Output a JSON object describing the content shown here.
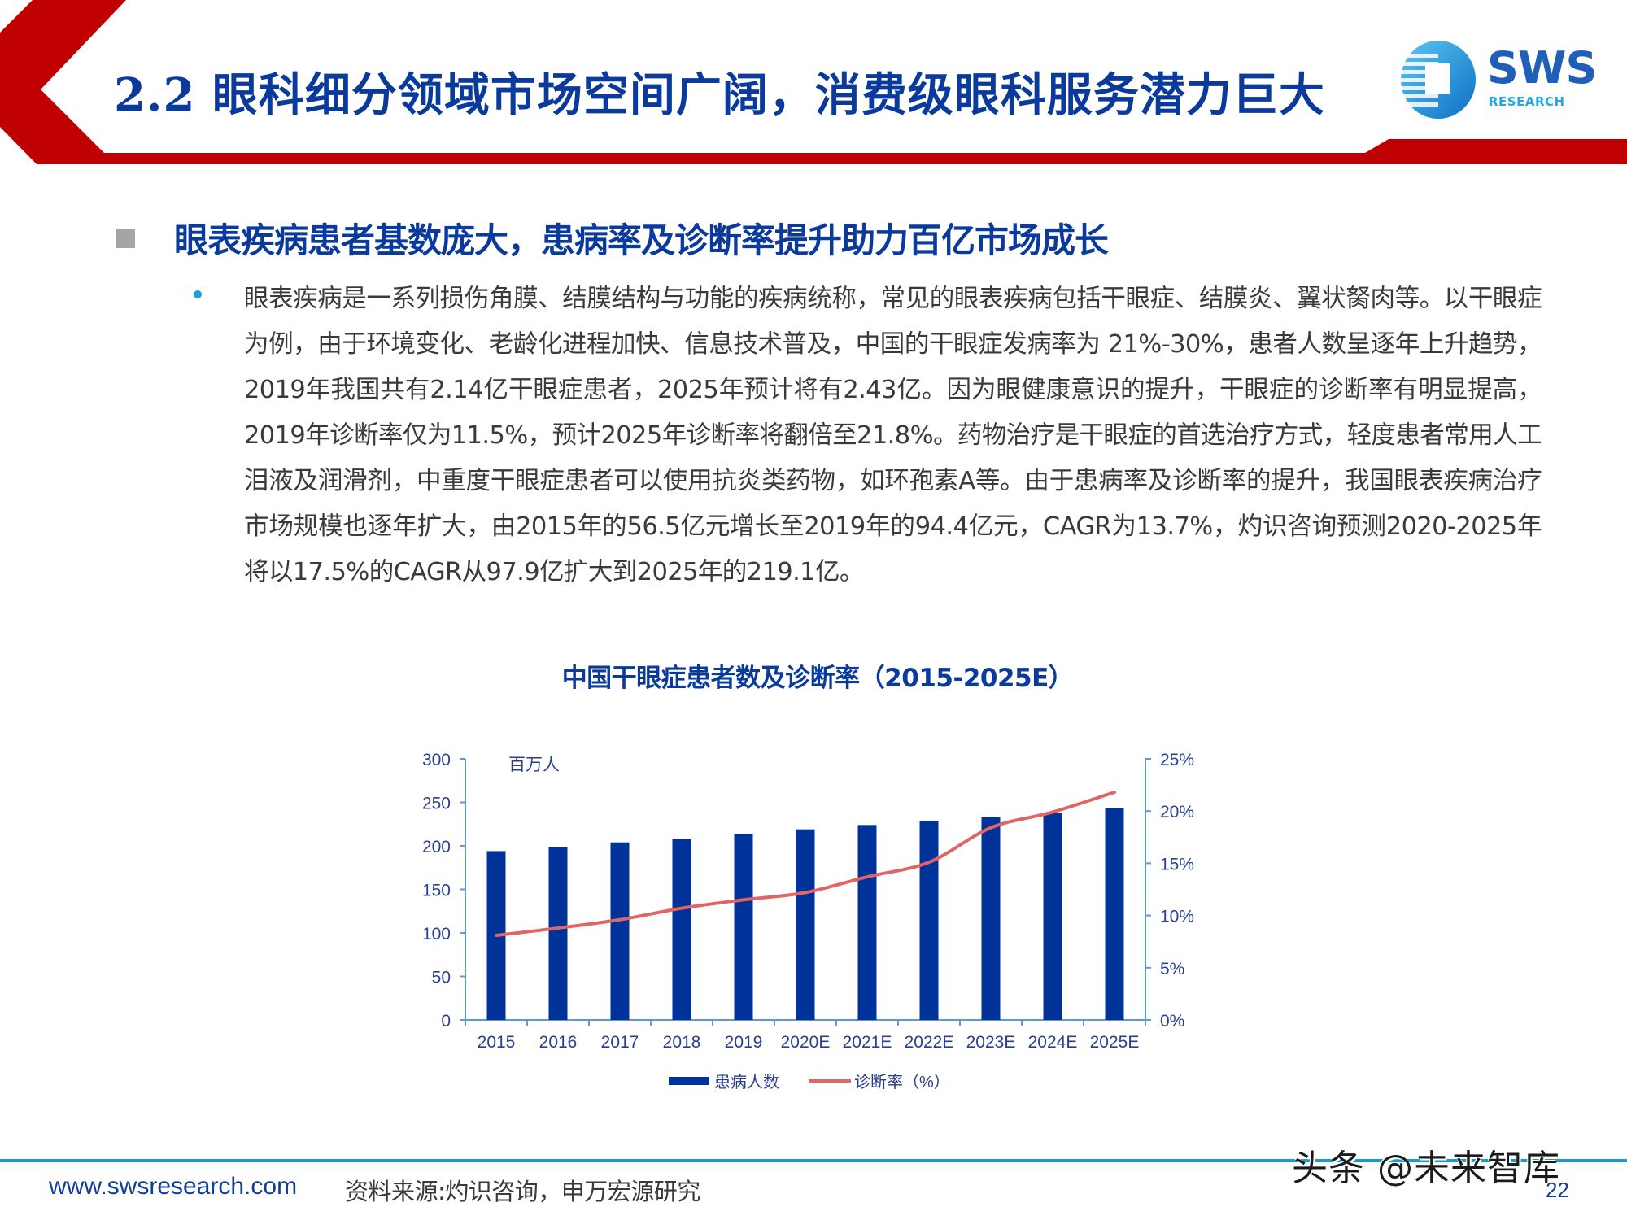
{
  "header": {
    "title": "2.2 眼科细分领域市场空间广阔，消费级眼科服务潜力巨大",
    "logo": {
      "name": "SWS",
      "subtitle": "RESEARCH"
    },
    "colors": {
      "accent_red": "#c00000",
      "title_blue": "#0a3a9c",
      "logo_blue": "#1f5fb8",
      "logo_cyan": "#22a8e6"
    }
  },
  "section": {
    "heading": "眼表疾病患者基数庞大，患病率及诊断率提升助力百亿市场成长",
    "body": "眼表疾病是一系列损伤角膜、结膜结构与功能的疾病统称，常见的眼表疾病包括干眼症、结膜炎、翼状胬肉等。以干眼症为例，由于环境变化、老龄化进程加快、信息技术普及，中国的干眼症发病率为 21%-30%，患者人数呈逐年上升趋势，2019年我国共有2.14亿干眼症患者，2025年预计将有2.43亿。因为眼健康意识的提升，干眼症的诊断率有明显提高，2019年诊断率仅为11.5%，预计2025年诊断率将翻倍至21.8%。药物治疗是干眼症的首选治疗方式，轻度患者常用人工泪液及润滑剂，中重度干眼症患者可以使用抗炎类药物，如环孢素A等。由于患病率及诊断率的提升，我国眼表疾病治疗市场规模也逐年扩大，由2015年的56.5亿元增长至2019年的94.4亿元，CAGR为13.7%，灼识咨询预测2020-2025年将以17.5%的CAGR从97.9亿扩大到2025年的219.1亿。"
  },
  "chart_data": {
    "type": "bar",
    "title": "中国干眼症患者数及诊断率（2015-2025E）",
    "categories": [
      "2015",
      "2016",
      "2017",
      "2018",
      "2019",
      "2020E",
      "2021E",
      "2022E",
      "2023E",
      "2024E",
      "2025E"
    ],
    "series": [
      {
        "name": "患病人数",
        "type": "bar",
        "axis": "left",
        "color": "#003399",
        "values": [
          194,
          199,
          204,
          208,
          214,
          219,
          224,
          229,
          233,
          238,
          243
        ]
      },
      {
        "name": "诊断率（%）",
        "type": "line",
        "axis": "right",
        "color": "#e06666",
        "values": [
          8.1,
          8.8,
          9.6,
          10.7,
          11.5,
          12.2,
          13.7,
          15.1,
          18.4,
          19.9,
          21.8
        ]
      }
    ],
    "xlabel": "",
    "ylabel": "百万人",
    "ylim": [
      0,
      300
    ],
    "yticks": [
      "0",
      "50",
      "100",
      "150",
      "200",
      "250",
      "300"
    ],
    "y2lim": [
      0,
      25
    ],
    "y2ticks": [
      "0%",
      "5%",
      "10%",
      "15%",
      "20%",
      "25%"
    ],
    "grid": false,
    "legend_position": "bottom",
    "legend": [
      "患病人数",
      "诊断率（%）"
    ]
  },
  "footer": {
    "url": "www.swsresearch.com",
    "source": "资料来源:灼识咨询，申万宏源研究",
    "page_number": "22",
    "watermark": "头条 @未来智库"
  }
}
